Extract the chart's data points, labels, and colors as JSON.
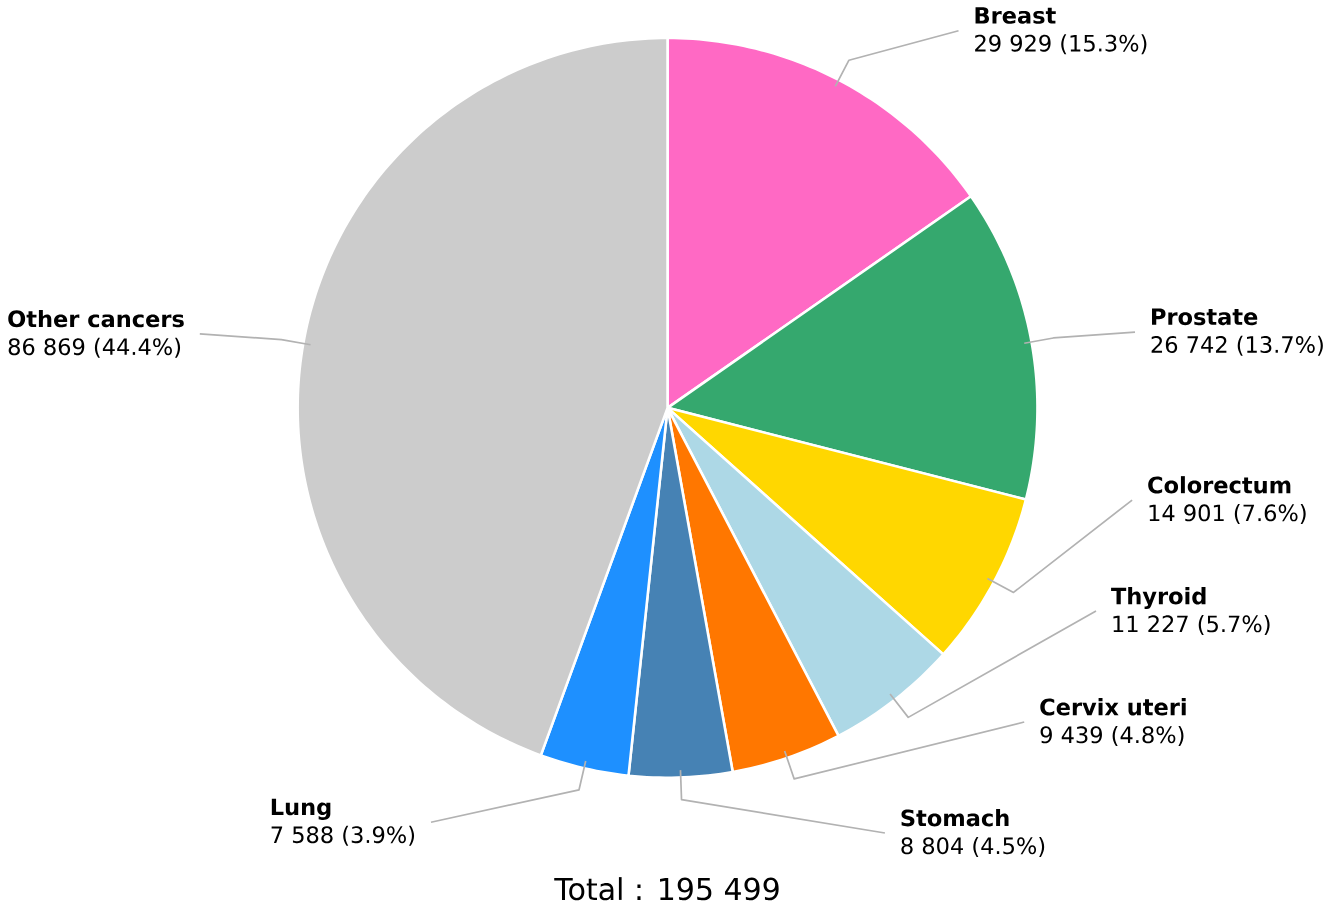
{
  "chart_data": {
    "type": "pie",
    "categories": [
      "Breast",
      "Prostate",
      "Colorectum",
      "Thyroid",
      "Cervix uteri",
      "Stomach",
      "Lung",
      "Other cancers"
    ],
    "values": [
      29929,
      26742,
      14901,
      11227,
      9439,
      8804,
      7588,
      86869
    ],
    "colors": [
      "#ff69c4",
      "#35a86e",
      "#ffd700",
      "#add8e6",
      "#ff7700",
      "#4682b4",
      "#1e90ff",
      "#cccccc"
    ],
    "value_labels": [
      "29 929 (15.3%)",
      "26 742 (13.7%)",
      "14 901 (7.6%)",
      "11 227 (5.7%)",
      "9 439 (4.8%)",
      "8 804 (4.5%)",
      "7 588 (3.9%)",
      "86 869 (44.4%)"
    ],
    "annotations": [
      "Total : 195 499"
    ]
  }
}
